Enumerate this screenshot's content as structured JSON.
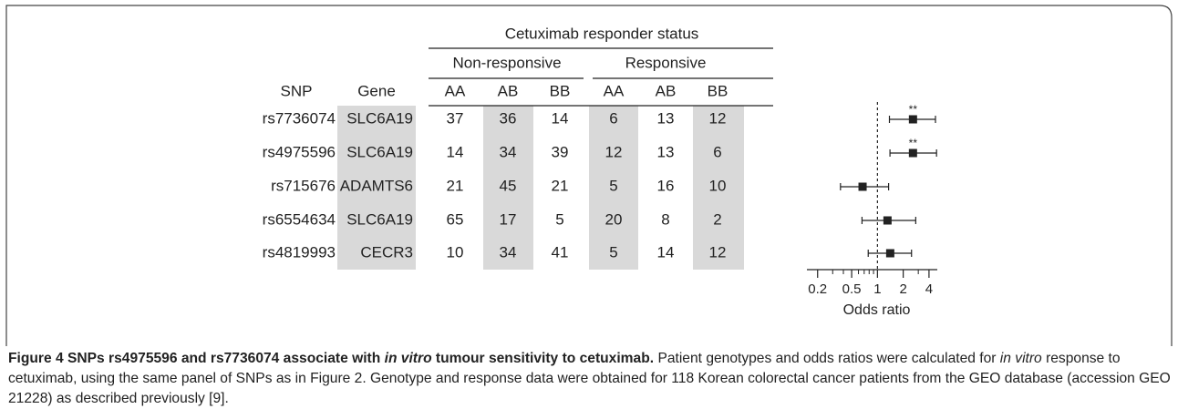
{
  "table": {
    "group_header": "Cetuximab responder status",
    "subgroups": [
      "Non-responsive",
      "Responsive"
    ],
    "columns": [
      "SNP",
      "Gene",
      "AA",
      "AB",
      "BB",
      "AA",
      "AB",
      "BB"
    ],
    "rows": [
      [
        "rs7736074",
        "SLC6A19",
        37,
        36,
        14,
        6,
        13,
        12
      ],
      [
        "rs4975596",
        "SLC6A19",
        14,
        34,
        39,
        12,
        13,
        6
      ],
      [
        "rs715676",
        "ADAMTS6",
        21,
        45,
        21,
        5,
        16,
        10
      ],
      [
        "rs6554634",
        "SLC6A19",
        65,
        17,
        5,
        20,
        8,
        2
      ],
      [
        "rs4819993",
        "CECR3",
        10,
        34,
        41,
        5,
        14,
        12
      ]
    ]
  },
  "chart_data": {
    "type": "forest",
    "xlabel": "Odds ratio",
    "xscale": "log",
    "xlim": [
      0.15,
      5
    ],
    "xticks": [
      0.2,
      0.5,
      1,
      2,
      4
    ],
    "xminorticks": [
      0.3,
      0.4,
      0.6,
      0.7,
      0.8,
      0.9,
      3
    ],
    "reference_line": 1,
    "values": [
      2.6,
      2.6,
      0.67,
      1.31,
      1.41
    ],
    "lower": [
      1.38,
      1.4,
      0.37,
      0.66,
      0.78
    ],
    "upper": [
      4.76,
      4.9,
      1.35,
      2.8,
      2.5
    ],
    "annotations": [
      "**",
      "**",
      null,
      null,
      null
    ],
    "color": "#222222"
  },
  "caption": {
    "title": [
      "Figure 4 SNPs rs4975596 and rs7736074 associate with ",
      "in vitro",
      " tumour sensitivity to cetuximab."
    ],
    "body": [
      "Patient genotypes and odds ratios were calculated for ",
      "in vitro",
      " response to cetuximab, using the same panel of SNPs as in Figure 2. Genotype and response data were obtained for 118 Korean colorectal cancer patients from the GEO database (accession GEO 21228) as described previously [9]."
    ]
  }
}
